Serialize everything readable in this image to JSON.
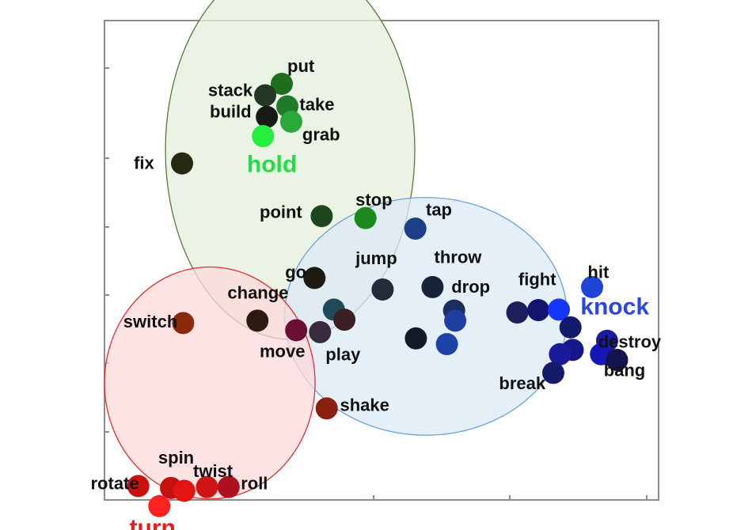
{
  "chart_data": {
    "type": "scatter",
    "title": "",
    "xlabel": "",
    "ylabel": "",
    "grid": false,
    "xlim": [
      0,
      100
    ],
    "ylim": [
      0,
      100
    ],
    "clusters": [
      {
        "label": "hold",
        "color": "#22dd44",
        "fill": "#e4efdc",
        "stroke": "#557a3a",
        "center": [
          33.5,
          73.0
        ],
        "radius": [
          22.5,
          39.5
        ]
      },
      {
        "label": "knock",
        "color": "#2a45e6",
        "fill": "#dce9f5",
        "stroke": "#6aa2d8",
        "center": [
          58.0,
          38.3
        ],
        "radius": [
          25.5,
          24.8
        ]
      },
      {
        "label": "turn",
        "color": "#e61b1b",
        "fill": "#fcdada",
        "stroke": "#e03030",
        "center": [
          19.0,
          24.4
        ],
        "radius": [
          19.0,
          24.2
        ]
      }
    ],
    "points": [
      {
        "word": "put",
        "x": 32.0,
        "y": 86.8,
        "color": "#1d6e1d",
        "lx": 33.0,
        "ly": 89.3
      },
      {
        "word": "stack",
        "x": 29.0,
        "y": 84.4,
        "color": "#243624",
        "lx": 18.7,
        "ly": 84.2
      },
      {
        "word": "take",
        "x": 33.0,
        "y": 82.1,
        "color": "#207a2c",
        "lx": 35.2,
        "ly": 81.3
      },
      {
        "word": "build",
        "x": 29.3,
        "y": 79.9,
        "color": "#161b16",
        "lx": 19.0,
        "ly": 79.8
      },
      {
        "word": "",
        "x": 33.7,
        "y": 78.9,
        "color": "#29a83c",
        "lx": 0,
        "ly": 0
      },
      {
        "word": "grab",
        "x": 28.6,
        "y": 75.9,
        "color": "#26ee3c",
        "lx": 35.7,
        "ly": 75.0
      },
      {
        "word": "fix",
        "x": 14.0,
        "y": 70.2,
        "color": "#26290f",
        "lx": 5.3,
        "ly": 69.1
      },
      {
        "word": "point",
        "x": 39.2,
        "y": 59.2,
        "color": "#1d461d",
        "lx": 28.0,
        "ly": 58.8
      },
      {
        "word": "stop",
        "x": 47.1,
        "y": 58.8,
        "color": "#1d8a1d",
        "lx": 45.3,
        "ly": 61.4
      },
      {
        "word": "tap",
        "x": 56.1,
        "y": 56.6,
        "color": "#1d3e88",
        "lx": 58.0,
        "ly": 59.3
      },
      {
        "word": "go",
        "x": 37.9,
        "y": 46.3,
        "color": "#1c1c14",
        "lx": 32.6,
        "ly": 46.3
      },
      {
        "word": "jump",
        "x": 50.2,
        "y": 43.9,
        "color": "#222c3a",
        "lx": 45.3,
        "ly": 49.2
      },
      {
        "word": "throw",
        "x": 59.2,
        "y": 44.4,
        "color": "#18233a",
        "lx": 59.5,
        "ly": 49.4
      },
      {
        "word": "drop",
        "x": 63.1,
        "y": 39.5,
        "color": "#1b2f5a",
        "lx": 62.6,
        "ly": 43.2
      },
      {
        "word": "",
        "x": 63.3,
        "y": 37.4,
        "color": "#1e3ea0",
        "lx": 0,
        "ly": 0
      },
      {
        "word": "",
        "x": 41.4,
        "y": 39.7,
        "color": "#1e4a5a",
        "lx": 0,
        "ly": 0
      },
      {
        "word": "",
        "x": 43.3,
        "y": 37.6,
        "color": "#3a2020",
        "lx": 0,
        "ly": 0
      },
      {
        "word": "change",
        "x": 27.6,
        "y": 37.4,
        "color": "#2e1a10",
        "lx": 22.2,
        "ly": 42.0
      },
      {
        "word": "switch",
        "x": 14.2,
        "y": 36.9,
        "color": "#8a2a0a",
        "lx": 3.4,
        "ly": 36.0
      },
      {
        "word": "move",
        "x": 34.6,
        "y": 35.4,
        "color": "#6a1033",
        "lx": 28.0,
        "ly": 29.8
      },
      {
        "word": "play",
        "x": 38.9,
        "y": 35.0,
        "color": "#3a2a3e",
        "lx": 39.9,
        "ly": 29.1
      },
      {
        "word": "",
        "x": 56.2,
        "y": 33.7,
        "color": "#121a26",
        "lx": 0,
        "ly": 0
      },
      {
        "word": "",
        "x": 61.8,
        "y": 32.5,
        "color": "#1c43a8",
        "lx": 0,
        "ly": 0
      },
      {
        "word": "fight",
        "x": 74.5,
        "y": 39.1,
        "color": "#1c1f5c",
        "lx": 74.7,
        "ly": 44.8
      },
      {
        "word": "",
        "x": 78.3,
        "y": 39.6,
        "color": "#14136e",
        "lx": 0,
        "ly": 0
      },
      {
        "word": "",
        "x": 82.0,
        "y": 39.7,
        "color": "#1436ff",
        "lx": 0,
        "ly": 0
      },
      {
        "word": "hit",
        "x": 88.0,
        "y": 44.4,
        "color": "#1f45d6",
        "lx": 87.2,
        "ly": 46.3
      },
      {
        "word": "knock",
        "x": 0,
        "y": 0,
        "color": "#2a45e6",
        "lx": 85.9,
        "ly": 38.7,
        "big": true
      },
      {
        "word": "",
        "x": 84.1,
        "y": 36.0,
        "color": "#141a6e",
        "lx": 0,
        "ly": 0
      },
      {
        "word": "destroy",
        "x": 90.7,
        "y": 33.2,
        "color": "#1c1ca0",
        "lx": 89.1,
        "ly": 31.8
      },
      {
        "word": "",
        "x": 84.5,
        "y": 31.3,
        "color": "#16168a",
        "lx": 0,
        "ly": 0
      },
      {
        "word": "",
        "x": 82.2,
        "y": 30.4,
        "color": "#1a1a9a",
        "lx": 0,
        "ly": 0
      },
      {
        "word": "",
        "x": 89.6,
        "y": 30.4,
        "color": "#1717b8",
        "lx": 0,
        "ly": 0
      },
      {
        "word": "bang",
        "x": 92.5,
        "y": 29.2,
        "color": "#14144e",
        "lx": 90.1,
        "ly": 25.8
      },
      {
        "word": "break",
        "x": 81.0,
        "y": 26.5,
        "color": "#151a6a",
        "lx": 71.2,
        "ly": 23.1
      },
      {
        "word": "shake",
        "x": 40.1,
        "y": 19.1,
        "color": "#8a2010",
        "lx": 42.5,
        "ly": 18.6
      },
      {
        "word": "spin",
        "x": 12.0,
        "y": 2.5,
        "color": "#c61010",
        "lx": 9.7,
        "ly": 7.6
      },
      {
        "word": "twist",
        "x": 18.5,
        "y": 2.7,
        "color": "#ce1414",
        "lx": 16.0,
        "ly": 4.8
      },
      {
        "word": "roll",
        "x": 22.4,
        "y": 2.7,
        "color": "#b0101e",
        "lx": 24.6,
        "ly": 2.2
      },
      {
        "word": "rotate",
        "x": 6.1,
        "y": 2.9,
        "color": "#cc1010",
        "lx": -2.5,
        "ly": 2.2
      },
      {
        "word": "",
        "x": 14.4,
        "y": 1.9,
        "color": "#e41414",
        "lx": 0,
        "ly": 0
      },
      {
        "word": "",
        "x": 9.9,
        "y": -1.3,
        "color": "#ff2020",
        "lx": 0,
        "ly": 0
      }
    ],
    "cluster_labels": [
      {
        "word": "hold",
        "x": 25.7,
        "y": 68.4,
        "color": "#22dd44"
      },
      {
        "word": "turn",
        "x": 4.5,
        "y": -7.4,
        "color": "#e61b1b"
      }
    ]
  }
}
